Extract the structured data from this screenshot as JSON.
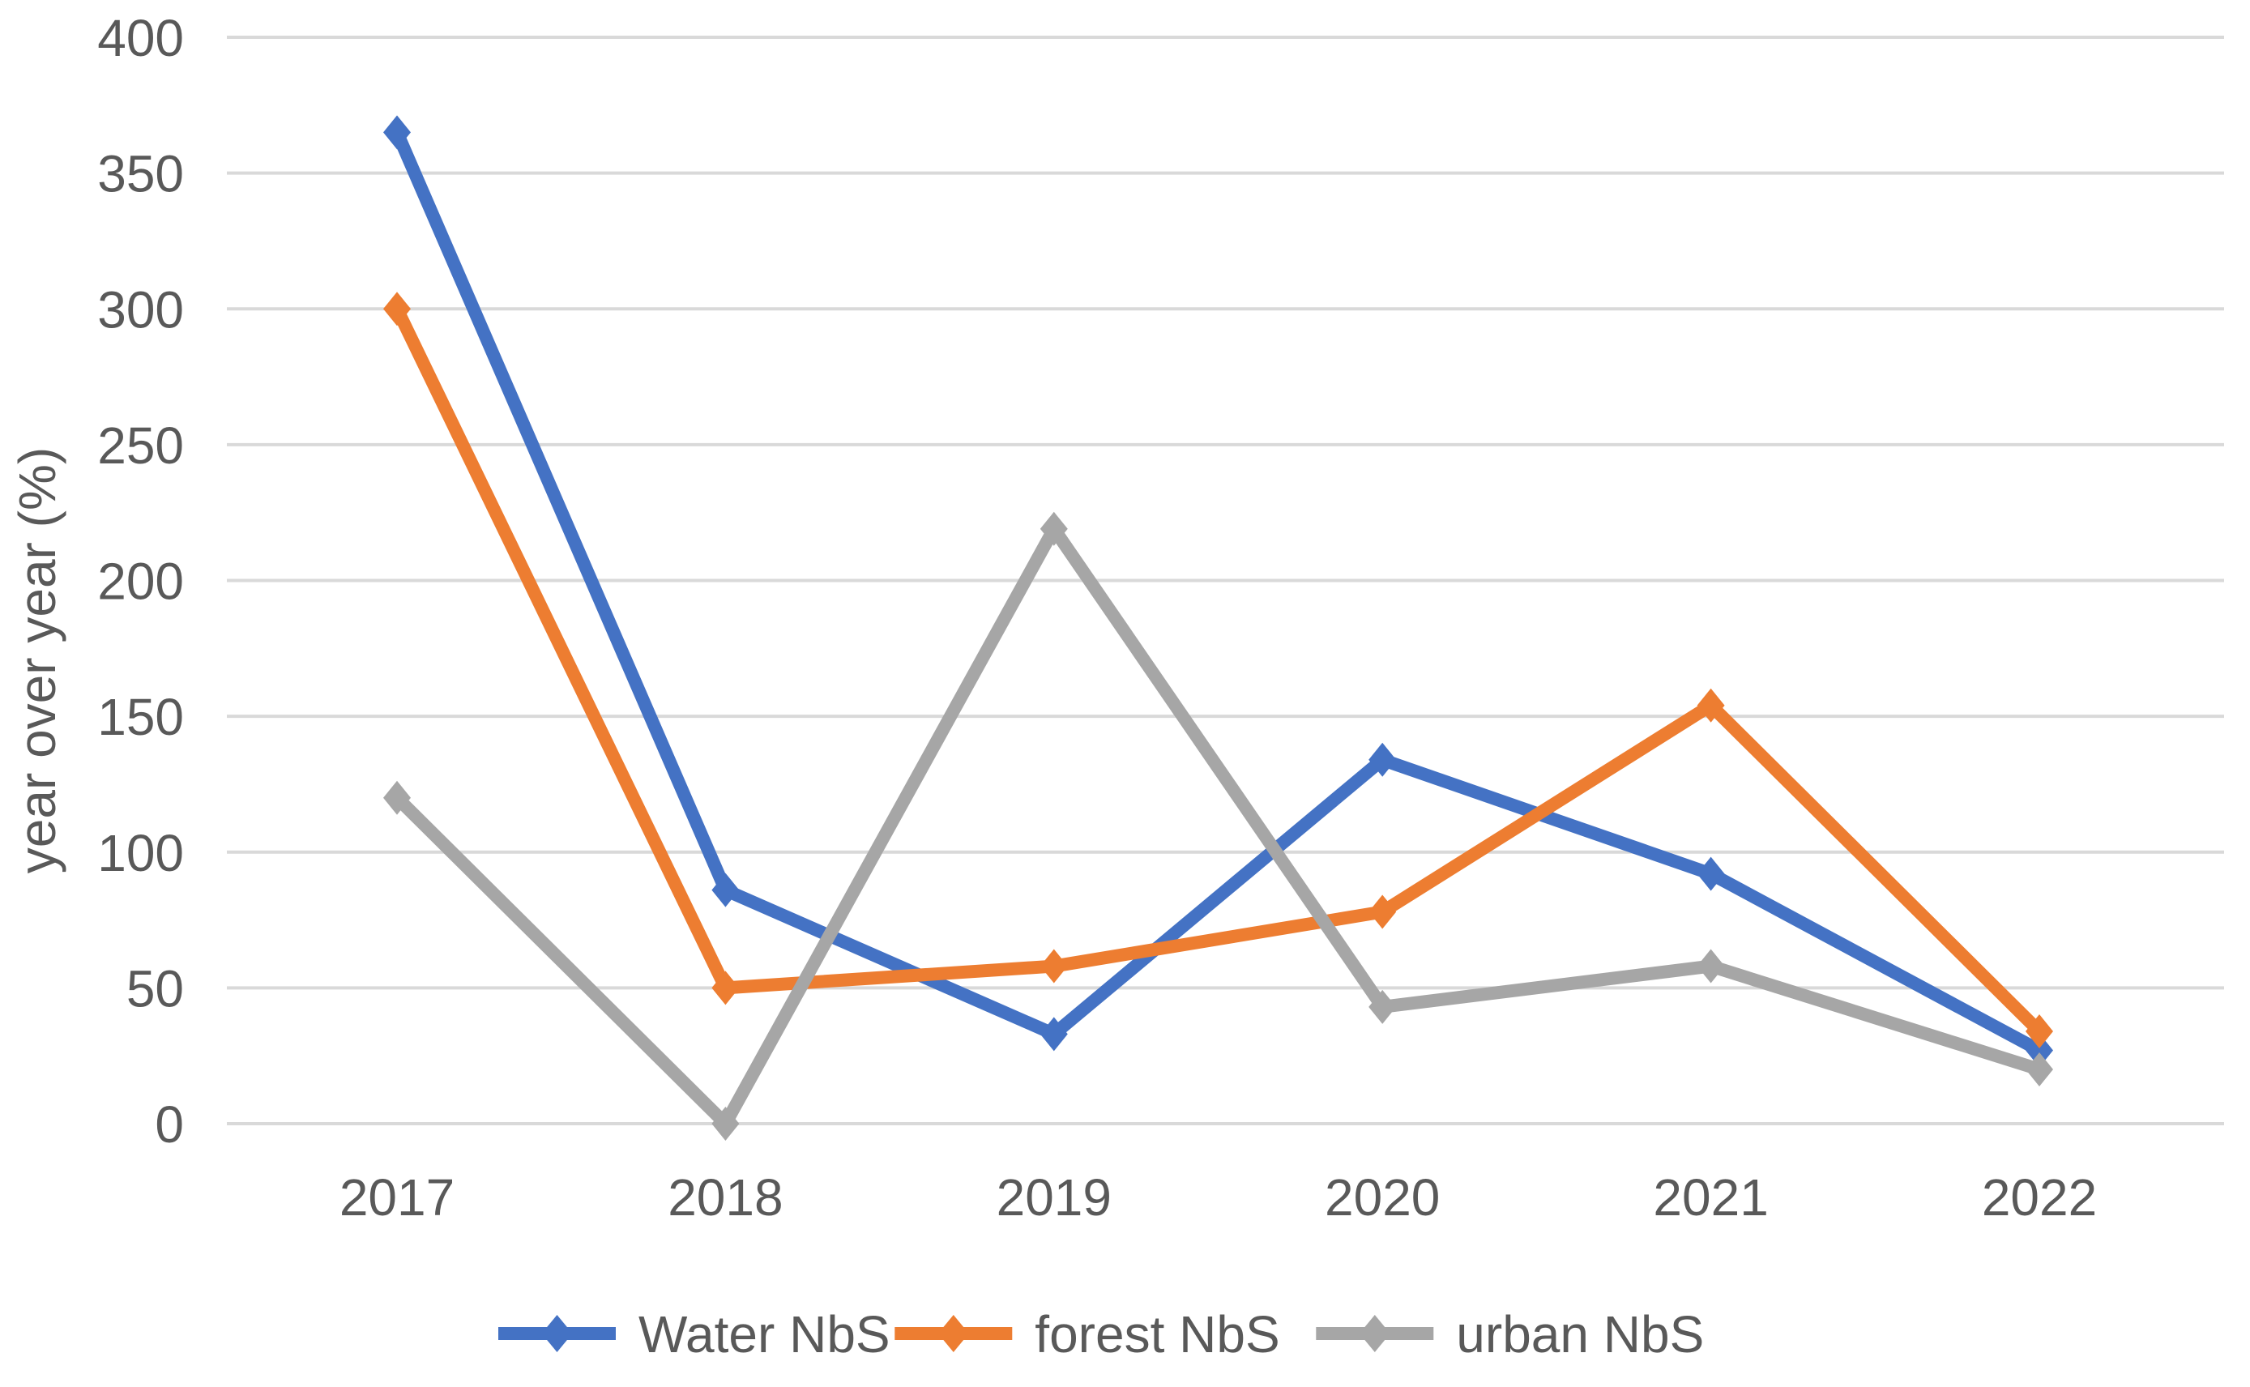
{
  "chart_data": {
    "type": "line",
    "title": "",
    "xlabel": "",
    "ylabel": "year over year (%)",
    "categories": [
      "2017",
      "2018",
      "2019",
      "2020",
      "2021",
      "2022"
    ],
    "series": [
      {
        "name": "Water NbS",
        "color": "#4472C4",
        "values": [
          365,
          86,
          33,
          134,
          92,
          27
        ]
      },
      {
        "name": "forest NbS",
        "color": "#ED7D31",
        "values": [
          300,
          50,
          58,
          78,
          154,
          34
        ]
      },
      {
        "name": "urban NbS",
        "color": "#A6A6A6",
        "values": [
          120,
          0,
          219,
          43,
          58,
          20
        ]
      }
    ],
    "ylim": [
      0,
      400
    ],
    "ytick_step": 50,
    "yticks": [
      0,
      50,
      100,
      150,
      200,
      250,
      300,
      350,
      400
    ],
    "grid": "horizontal",
    "legend_position": "bottom",
    "marker": "diamond",
    "colors": {
      "gridline": "#D9D9D9",
      "axis_text": "#595959",
      "background": "#FFFFFF"
    }
  }
}
